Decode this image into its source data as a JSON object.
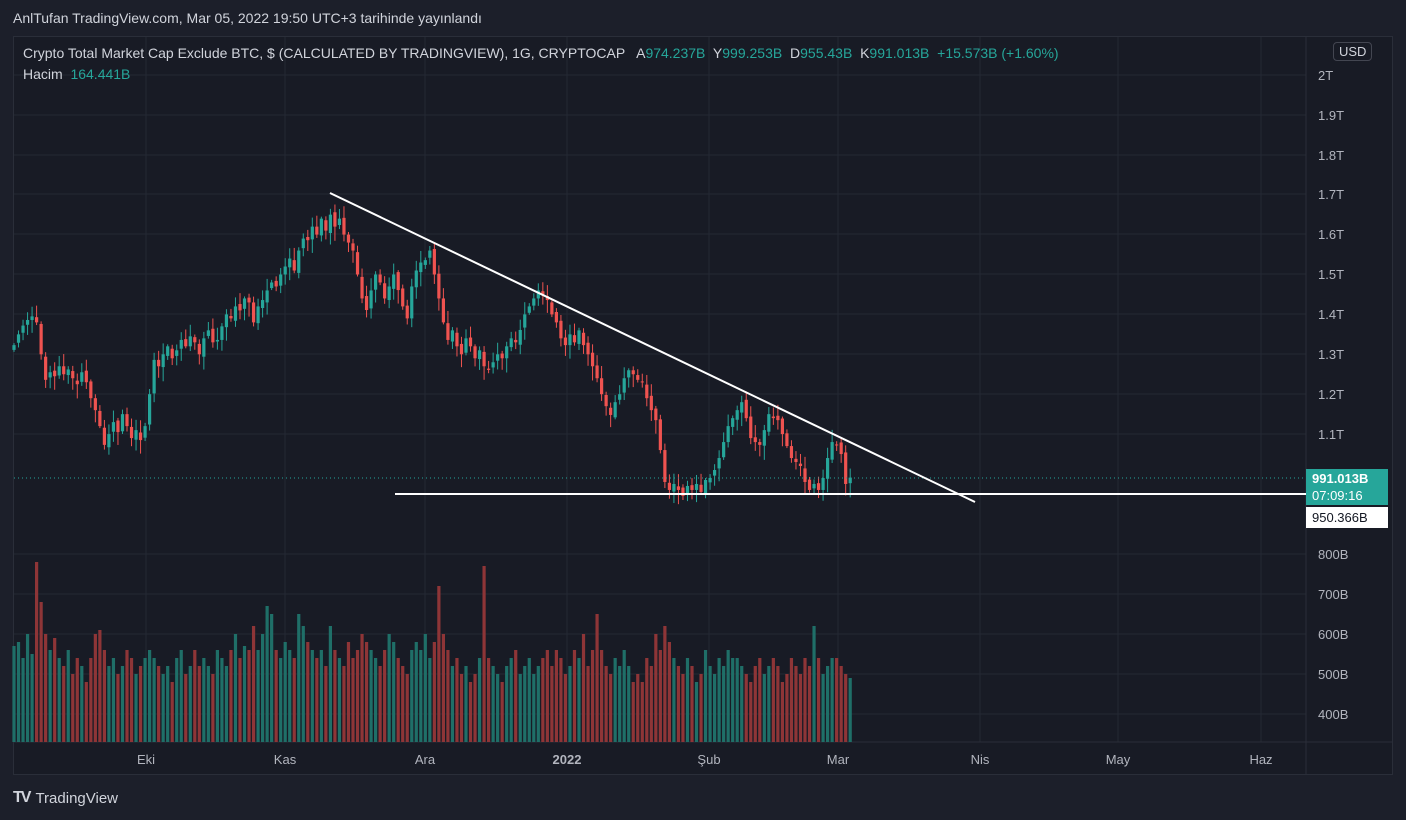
{
  "published": "AnlTufan TradingView.com, Mar 05, 2022 19:50 UTC+3 tarihinde yayınlandı",
  "legend": {
    "title": "Crypto Total Market Cap Exclude BTC, $ (CALCULATED BY TRADINGVIEW), 1G, CRYPTOCAP",
    "open_label": "A",
    "open": "974.237B",
    "high_label": "Y",
    "high": "999.253B",
    "low_label": "D",
    "low": "955.43B",
    "close_label": "K",
    "close": "991.013B",
    "change": "+15.573B (+1.60%)",
    "volume_label": "Hacim",
    "volume": "164.441B"
  },
  "currency": "USD",
  "last_price": "991.013B",
  "countdown": "07:09:16",
  "line_price": "950.366B",
  "footer_brand": "TradingView",
  "colors": {
    "up": "#26a69a",
    "down": "#ef5350",
    "up_vol": "#1f6f68",
    "down_vol": "#8e3537"
  },
  "chart_data": {
    "type": "candlestick",
    "title": "Crypto Total Market Cap Exclude BTC",
    "start_date": "2021-09-02",
    "interval": "1D",
    "price_unit": "B USD",
    "ylim": [
      850,
      2100
    ],
    "y_ticks": [
      "2T",
      "1.9T",
      "1.8T",
      "1.7T",
      "1.6T",
      "1.5T",
      "1.4T",
      "1.3T",
      "1.2T",
      "1.1T",
      "800B",
      "700B",
      "600B",
      "500B",
      "400B"
    ],
    "x_ticks": [
      "Eki",
      "Kas",
      "Ara",
      "2022",
      "Şub",
      "Mar",
      "Nis",
      "May",
      "Haz"
    ],
    "closes": [
      1323,
      1350,
      1372,
      1386,
      1395,
      1380,
      1300,
      1236,
      1255,
      1245,
      1270,
      1250,
      1262,
      1240,
      1225,
      1255,
      1230,
      1190,
      1160,
      1120,
      1073,
      1100,
      1130,
      1105,
      1150,
      1120,
      1090,
      1110,
      1085,
      1120,
      1200,
      1286,
      1270,
      1300,
      1320,
      1290,
      1310,
      1336,
      1320,
      1345,
      1330,
      1300,
      1340,
      1360,
      1330,
      1336,
      1370,
      1400,
      1390,
      1420,
      1410,
      1440,
      1430,
      1380,
      1420,
      1436,
      1460,
      1480,
      1470,
      1500,
      1520,
      1540,
      1510,
      1560,
      1590,
      1586,
      1620,
      1600,
      1640,
      1610,
      1650,
      1620,
      1640,
      1600,
      1580,
      1560,
      1500,
      1440,
      1411,
      1460,
      1500,
      1480,
      1440,
      1470,
      1500,
      1461,
      1420,
      1390,
      1470,
      1510,
      1530,
      1536,
      1560,
      1500,
      1440,
      1380,
      1336,
      1360,
      1320,
      1300,
      1340,
      1320,
      1290,
      1310,
      1270,
      1261,
      1280,
      1300,
      1290,
      1320,
      1340,
      1330,
      1361,
      1400,
      1420,
      1440,
      1460,
      1450,
      1436,
      1400,
      1380,
      1340,
      1323,
      1350,
      1330,
      1360,
      1323,
      1300,
      1270,
      1240,
      1200,
      1170,
      1148,
      1180,
      1200,
      1240,
      1260,
      1250,
      1236,
      1230,
      1190,
      1160,
      1135,
      1060,
      980,
      960,
      975,
      960,
      945,
      970,
      960,
      975,
      955,
      985,
      990,
      1010,
      1040,
      1080,
      1120,
      1140,
      1160,
      1180,
      1140,
      1090,
      1080,
      1073,
      1110,
      1150,
      1140,
      1135,
      1100,
      1070,
      1040,
      1030,
      1020,
      980,
      960,
      975,
      960,
      990,
      1040,
      1080,
      1073,
      1050,
      975,
      991
    ],
    "volumes": [
      570,
      580,
      540,
      600,
      550,
      780,
      680,
      600,
      560,
      590,
      540,
      520,
      560,
      500,
      540,
      520,
      480,
      540,
      600,
      610,
      560,
      520,
      540,
      500,
      520,
      560,
      540,
      500,
      520,
      540,
      560,
      540,
      520,
      500,
      520,
      480,
      540,
      560,
      500,
      520,
      560,
      520,
      540,
      520,
      500,
      560,
      540,
      520,
      560,
      600,
      540,
      570,
      560,
      620,
      560,
      600,
      670,
      650,
      560,
      540,
      580,
      560,
      540,
      650,
      620,
      580,
      560,
      540,
      560,
      520,
      620,
      560,
      540,
      520,
      580,
      540,
      560,
      600,
      580,
      560,
      540,
      520,
      560,
      600,
      580,
      540,
      520,
      500,
      560,
      580,
      560,
      600,
      540,
      580,
      720,
      600,
      560,
      520,
      540,
      500,
      520,
      480,
      500,
      540,
      770,
      540,
      520,
      500,
      480,
      520,
      540,
      560,
      500,
      520,
      540,
      500,
      520,
      540,
      560,
      520,
      560,
      540,
      500,
      520,
      560,
      540,
      600,
      520,
      560,
      650,
      560,
      520,
      500,
      540,
      520,
      560,
      520,
      480,
      500,
      480,
      540,
      520,
      600,
      560,
      620,
      580,
      540,
      520,
      500,
      540,
      520,
      480,
      500,
      560,
      520,
      500,
      540,
      520,
      560,
      540,
      540,
      520,
      500,
      480,
      520,
      540,
      500,
      520,
      540,
      520,
      480,
      500,
      540,
      520,
      500,
      540,
      520,
      620,
      540,
      500,
      520,
      540,
      540,
      520,
      500,
      490
    ],
    "annotations": [
      "descending trendline from Nov 2021 high",
      "horizontal support near 950.366B"
    ]
  }
}
